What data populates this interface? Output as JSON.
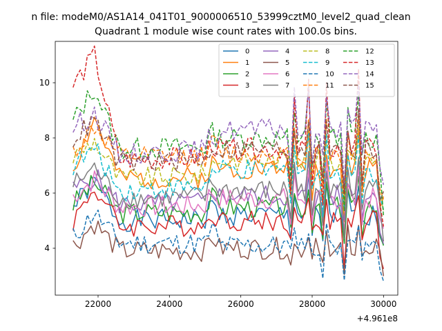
{
  "suptitle": "n file: modeM0/AS1A14_041T01_9000006510_53999cztM0_level2_quad_clean",
  "chart_data": {
    "type": "line",
    "title": "Quadrant 1 module wise count rates with 100.0s bins.",
    "xlabel": "",
    "ylabel": "",
    "x_offset_label": "+4.961e8",
    "xlim": [
      20800,
      30400
    ],
    "ylim": [
      2.3,
      11.5
    ],
    "xticks": [
      22000,
      24000,
      26000,
      28000,
      30000
    ],
    "yticks": [
      4,
      6,
      8,
      10
    ],
    "x_start": 21300,
    "x_step": 100,
    "n_points": 88,
    "grid": false,
    "legend": {
      "placement": "top-right",
      "columns": 4
    },
    "series": [
      {
        "name": "0",
        "color": "#1f77b4",
        "style": "solid",
        "base": 5.5,
        "peak": 6.4,
        "mid": 5.0,
        "late": 5.2,
        "seed": 1
      },
      {
        "name": "1",
        "color": "#ff7f0e",
        "style": "solid",
        "base": 6.9,
        "peak": 8.7,
        "mid": 6.5,
        "late": 6.9,
        "seed": 2
      },
      {
        "name": "2",
        "color": "#2ca02c",
        "style": "solid",
        "base": 5.6,
        "peak": 6.4,
        "mid": 5.3,
        "late": 5.5,
        "seed": 3
      },
      {
        "name": "3",
        "color": "#d62728",
        "style": "solid",
        "base": 5.0,
        "peak": 6.2,
        "mid": 4.8,
        "late": 5.0,
        "seed": 4
      },
      {
        "name": "4",
        "color": "#9467bd",
        "style": "solid",
        "base": 6.1,
        "peak": 6.6,
        "mid": 5.6,
        "late": 5.9,
        "seed": 5
      },
      {
        "name": "5",
        "color": "#8c564b",
        "style": "solid",
        "base": 4.1,
        "peak": 4.9,
        "mid": 3.9,
        "late": 4.0,
        "seed": 6
      },
      {
        "name": "6",
        "color": "#e377c2",
        "style": "solid",
        "base": 5.9,
        "peak": 6.5,
        "mid": 5.5,
        "late": 5.8,
        "seed": 7
      },
      {
        "name": "7",
        "color": "#7f7f7f",
        "style": "solid",
        "base": 6.3,
        "peak": 6.9,
        "mid": 5.8,
        "late": 6.1,
        "seed": 8
      },
      {
        "name": "8",
        "color": "#bcbd22",
        "style": "dashed",
        "base": 7.3,
        "peak": 7.9,
        "mid": 6.5,
        "late": 7.2,
        "seed": 9
      },
      {
        "name": "9",
        "color": "#17becf",
        "style": "dashed",
        "base": 7.0,
        "peak": 7.6,
        "mid": 6.1,
        "late": 6.8,
        "seed": 10
      },
      {
        "name": "10",
        "color": "#1f77b4",
        "style": "dashed",
        "base": 4.4,
        "peak": 5.3,
        "mid": 4.2,
        "late": 4.1,
        "seed": 11
      },
      {
        "name": "11",
        "color": "#ff7f0e",
        "style": "dashed",
        "base": 7.5,
        "peak": 8.4,
        "mid": 7.3,
        "late": 7.4,
        "seed": 12
      },
      {
        "name": "12",
        "color": "#2ca02c",
        "style": "dashed",
        "base": 8.6,
        "peak": 9.8,
        "mid": 7.6,
        "late": 8.0,
        "seed": 13
      },
      {
        "name": "13",
        "color": "#d62728",
        "style": "dashed",
        "base": 9.9,
        "peak": 11.0,
        "mid": 7.2,
        "late": 7.6,
        "seed": 14
      },
      {
        "name": "14",
        "color": "#9467bd",
        "style": "dashed",
        "base": 8.4,
        "peak": 8.9,
        "mid": 7.4,
        "late": 8.3,
        "seed": 15
      },
      {
        "name": "15",
        "color": "#8c564b",
        "style": "dashed",
        "base": 8.0,
        "peak": 8.6,
        "mid": 7.1,
        "late": 7.6,
        "seed": 16
      }
    ]
  }
}
